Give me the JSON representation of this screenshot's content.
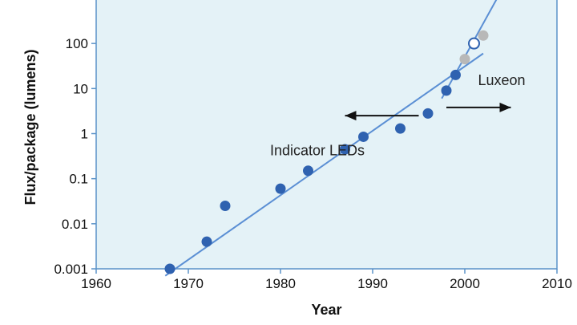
{
  "chart_data": {
    "type": "scatter",
    "title": "",
    "xlabel": "Year",
    "ylabel": "Flux/package (lumens)",
    "xlim": [
      1960,
      2010
    ],
    "ylim": [
      0.001,
      1000
    ],
    "y_scale": "log",
    "grid": false,
    "x_ticks": [
      "1960",
      "1970",
      "1980",
      "1990",
      "2000",
      "2010"
    ],
    "y_ticks": [
      "0.001",
      "0.01",
      "0.1",
      "1",
      "10",
      "100"
    ],
    "series": [
      {
        "name": "",
        "marker": "filled-circle",
        "color": "#2f62b0",
        "points": [
          {
            "x": 1968,
            "y": 0.001
          },
          {
            "x": 1972,
            "y": 0.004
          },
          {
            "x": 1974,
            "y": 0.025
          },
          {
            "x": 1980,
            "y": 0.06
          },
          {
            "x": 1983,
            "y": 0.15
          },
          {
            "x": 1987,
            "y": 0.45
          },
          {
            "x": 1989,
            "y": 0.85
          },
          {
            "x": 1993,
            "y": 1.3
          },
          {
            "x": 1996,
            "y": 2.8
          },
          {
            "x": 1998,
            "y": 9
          },
          {
            "x": 1999,
            "y": 20
          }
        ]
      },
      {
        "name": "",
        "marker": "filled-circle",
        "color": "#b8b8b8",
        "points": [
          {
            "x": 2000,
            "y": 45
          },
          {
            "x": 2002,
            "y": 150
          }
        ]
      },
      {
        "name": "",
        "marker": "open-circle",
        "color": "#2f62b0",
        "points": [
          {
            "x": 2001,
            "y": 100
          }
        ]
      }
    ],
    "trend_lines": [
      {
        "x": [
          1967.5,
          2002
        ],
        "y": [
          0.0007,
          60
        ],
        "color": "#5b8fd4"
      },
      {
        "x": [
          1997.5,
          2003.5
        ],
        "y": [
          6,
          1000
        ],
        "color": "#5b8fd4"
      }
    ],
    "annotations": [
      {
        "text": "Indicator LEDs",
        "x": 1984,
        "y": 0.33
      },
      {
        "text": "Luxeon",
        "x": 2004,
        "y": 12
      }
    ],
    "arrows": [
      {
        "direction": "left",
        "from": [
          1995,
          2.5
        ],
        "to": [
          1987,
          2.5
        ]
      },
      {
        "direction": "right",
        "from": [
          1998,
          3.8
        ],
        "to": [
          2005,
          3.8
        ]
      }
    ],
    "colors": {
      "plot_background": "#e4f2f7",
      "axis": "#5a92c8",
      "point": "#2f62b0"
    }
  }
}
